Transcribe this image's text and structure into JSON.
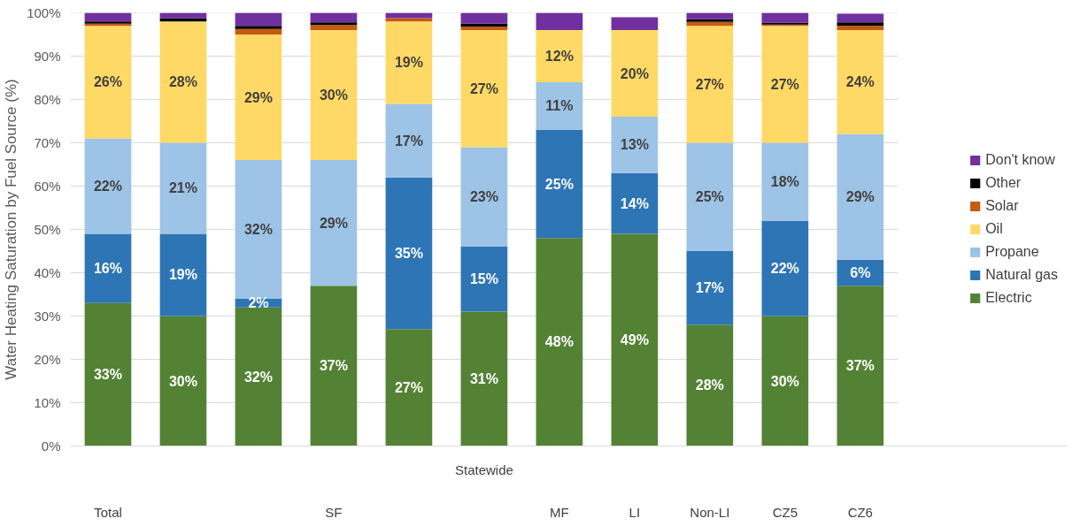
{
  "chart_data": {
    "type": "bar",
    "stacked": true,
    "ylabel": "Water Heating Saturation by Fuel Source (%)",
    "categories": [
      "Total",
      null,
      null,
      null,
      null,
      "Statewide",
      "MF",
      "LI",
      "Non-LI",
      "CZ5",
      "CZ6"
    ],
    "annotations": [
      "SF"
    ],
    "ylim": [
      0,
      100
    ],
    "yticks": [
      {
        "value": 0,
        "label": "0%"
      },
      {
        "value": 10,
        "label": "10%"
      },
      {
        "value": 20,
        "label": "20%"
      },
      {
        "value": 30,
        "label": "30%"
      },
      {
        "value": 40,
        "label": "40%"
      },
      {
        "value": 50,
        "label": "50%"
      },
      {
        "value": 60,
        "label": "60%"
      },
      {
        "value": 70,
        "label": "70%"
      },
      {
        "value": 80,
        "label": "80%"
      },
      {
        "value": 90,
        "label": "90%"
      },
      {
        "value": 100,
        "label": "100%"
      }
    ],
    "grid": "y",
    "legend": "right",
    "series": [
      {
        "name": "Electric",
        "color": "#548235",
        "values": [
          33,
          30,
          32,
          37,
          27,
          31,
          48,
          49,
          28,
          30,
          37
        ],
        "value_labels": [
          "33%",
          "30%",
          "32%",
          "37%",
          "27%",
          "31%",
          "48%",
          "49%",
          "28%",
          "30%",
          "37%"
        ]
      },
      {
        "name": "Natural gas",
        "color": "#2e75b6",
        "values": [
          16,
          19,
          2,
          0,
          35,
          15,
          25,
          14,
          17,
          22,
          6
        ],
        "value_labels": [
          "16%",
          "19%",
          "2%",
          null,
          "35%",
          "15%",
          "25%",
          "14%",
          "17%",
          "22%",
          "6%"
        ]
      },
      {
        "name": "Propane",
        "color": "#9dc3e6",
        "values": [
          22,
          21,
          32,
          29,
          17,
          23,
          11,
          13,
          25,
          18,
          29
        ],
        "value_labels": [
          "22%",
          "21%",
          "32%",
          "29%",
          "17%",
          "23%",
          "11%",
          "13%",
          "25%",
          "18%",
          "29%"
        ]
      },
      {
        "name": "Oil",
        "color": "#ffd966",
        "values": [
          26,
          28,
          29,
          30,
          19,
          27,
          12,
          20,
          27,
          27,
          24
        ],
        "value_labels": [
          "26%",
          "28%",
          "29%",
          "30%",
          "19%",
          "27%",
          "12%",
          "20%",
          "27%",
          "27%",
          "24%"
        ]
      },
      {
        "name": "Solar",
        "color": "#c55a11",
        "values": [
          0.5,
          0,
          1.3,
          1.2,
          0.8,
          0.8,
          0,
          0,
          0.9,
          0.3,
          1
        ]
      },
      {
        "name": "Other",
        "color": "#000000",
        "values": [
          0.5,
          0.8,
          0.7,
          0.6,
          0,
          0.7,
          0,
          0,
          0.6,
          0.4,
          0.8
        ]
      },
      {
        "name": "Don't know",
        "color": "#7030a0",
        "values": [
          2,
          1.2,
          3,
          2.2,
          1.2,
          2.5,
          4,
          3,
          1.8,
          2.4,
          2
        ]
      }
    ]
  }
}
